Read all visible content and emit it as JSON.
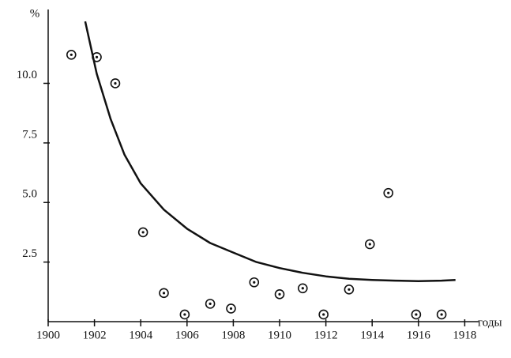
{
  "chart_data": {
    "type": "scatter",
    "y_label": "%",
    "x_label": "годы",
    "xlim": [
      1900,
      1918.6
    ],
    "ylim": [
      0,
      13.1
    ],
    "xticks": [
      1900,
      1902,
      1904,
      1906,
      1908,
      1910,
      1912,
      1914,
      1916,
      1918
    ],
    "yticks": [
      {
        "value": 2.5,
        "label": "2.5"
      },
      {
        "value": 5,
        "label": "5.0"
      },
      {
        "value": 7.5,
        "label": "7.5"
      },
      {
        "value": 10,
        "label": "10.0"
      }
    ],
    "color": "#111111",
    "points": {
      "x": [
        1901,
        1902.1,
        1902.9,
        1904.1,
        1905,
        1905.9,
        1907,
        1907.9,
        1908.9,
        1910,
        1911,
        1911.9,
        1913,
        1913.9,
        1914.7,
        1915.9,
        1917
      ],
      "y": [
        11.2,
        11.1,
        10,
        3.75,
        1.2,
        0.3,
        0.75,
        0.55,
        1.65,
        1.15,
        1.4,
        0.3,
        1.35,
        3.25,
        5.4,
        0.3,
        0.3
      ]
    },
    "curve": {
      "x": [
        1901.6,
        1902.1,
        1902.7,
        1903.3,
        1904,
        1905,
        1906,
        1907,
        1908,
        1909,
        1910,
        1911,
        1912,
        1913,
        1914,
        1915,
        1916,
        1917,
        1917.6
      ],
      "y": [
        12.6,
        10.4,
        8.5,
        7,
        5.8,
        4.7,
        3.9,
        3.3,
        2.9,
        2.5,
        2.25,
        2.05,
        1.9,
        1.8,
        1.75,
        1.72,
        1.7,
        1.72,
        1.75
      ]
    }
  }
}
